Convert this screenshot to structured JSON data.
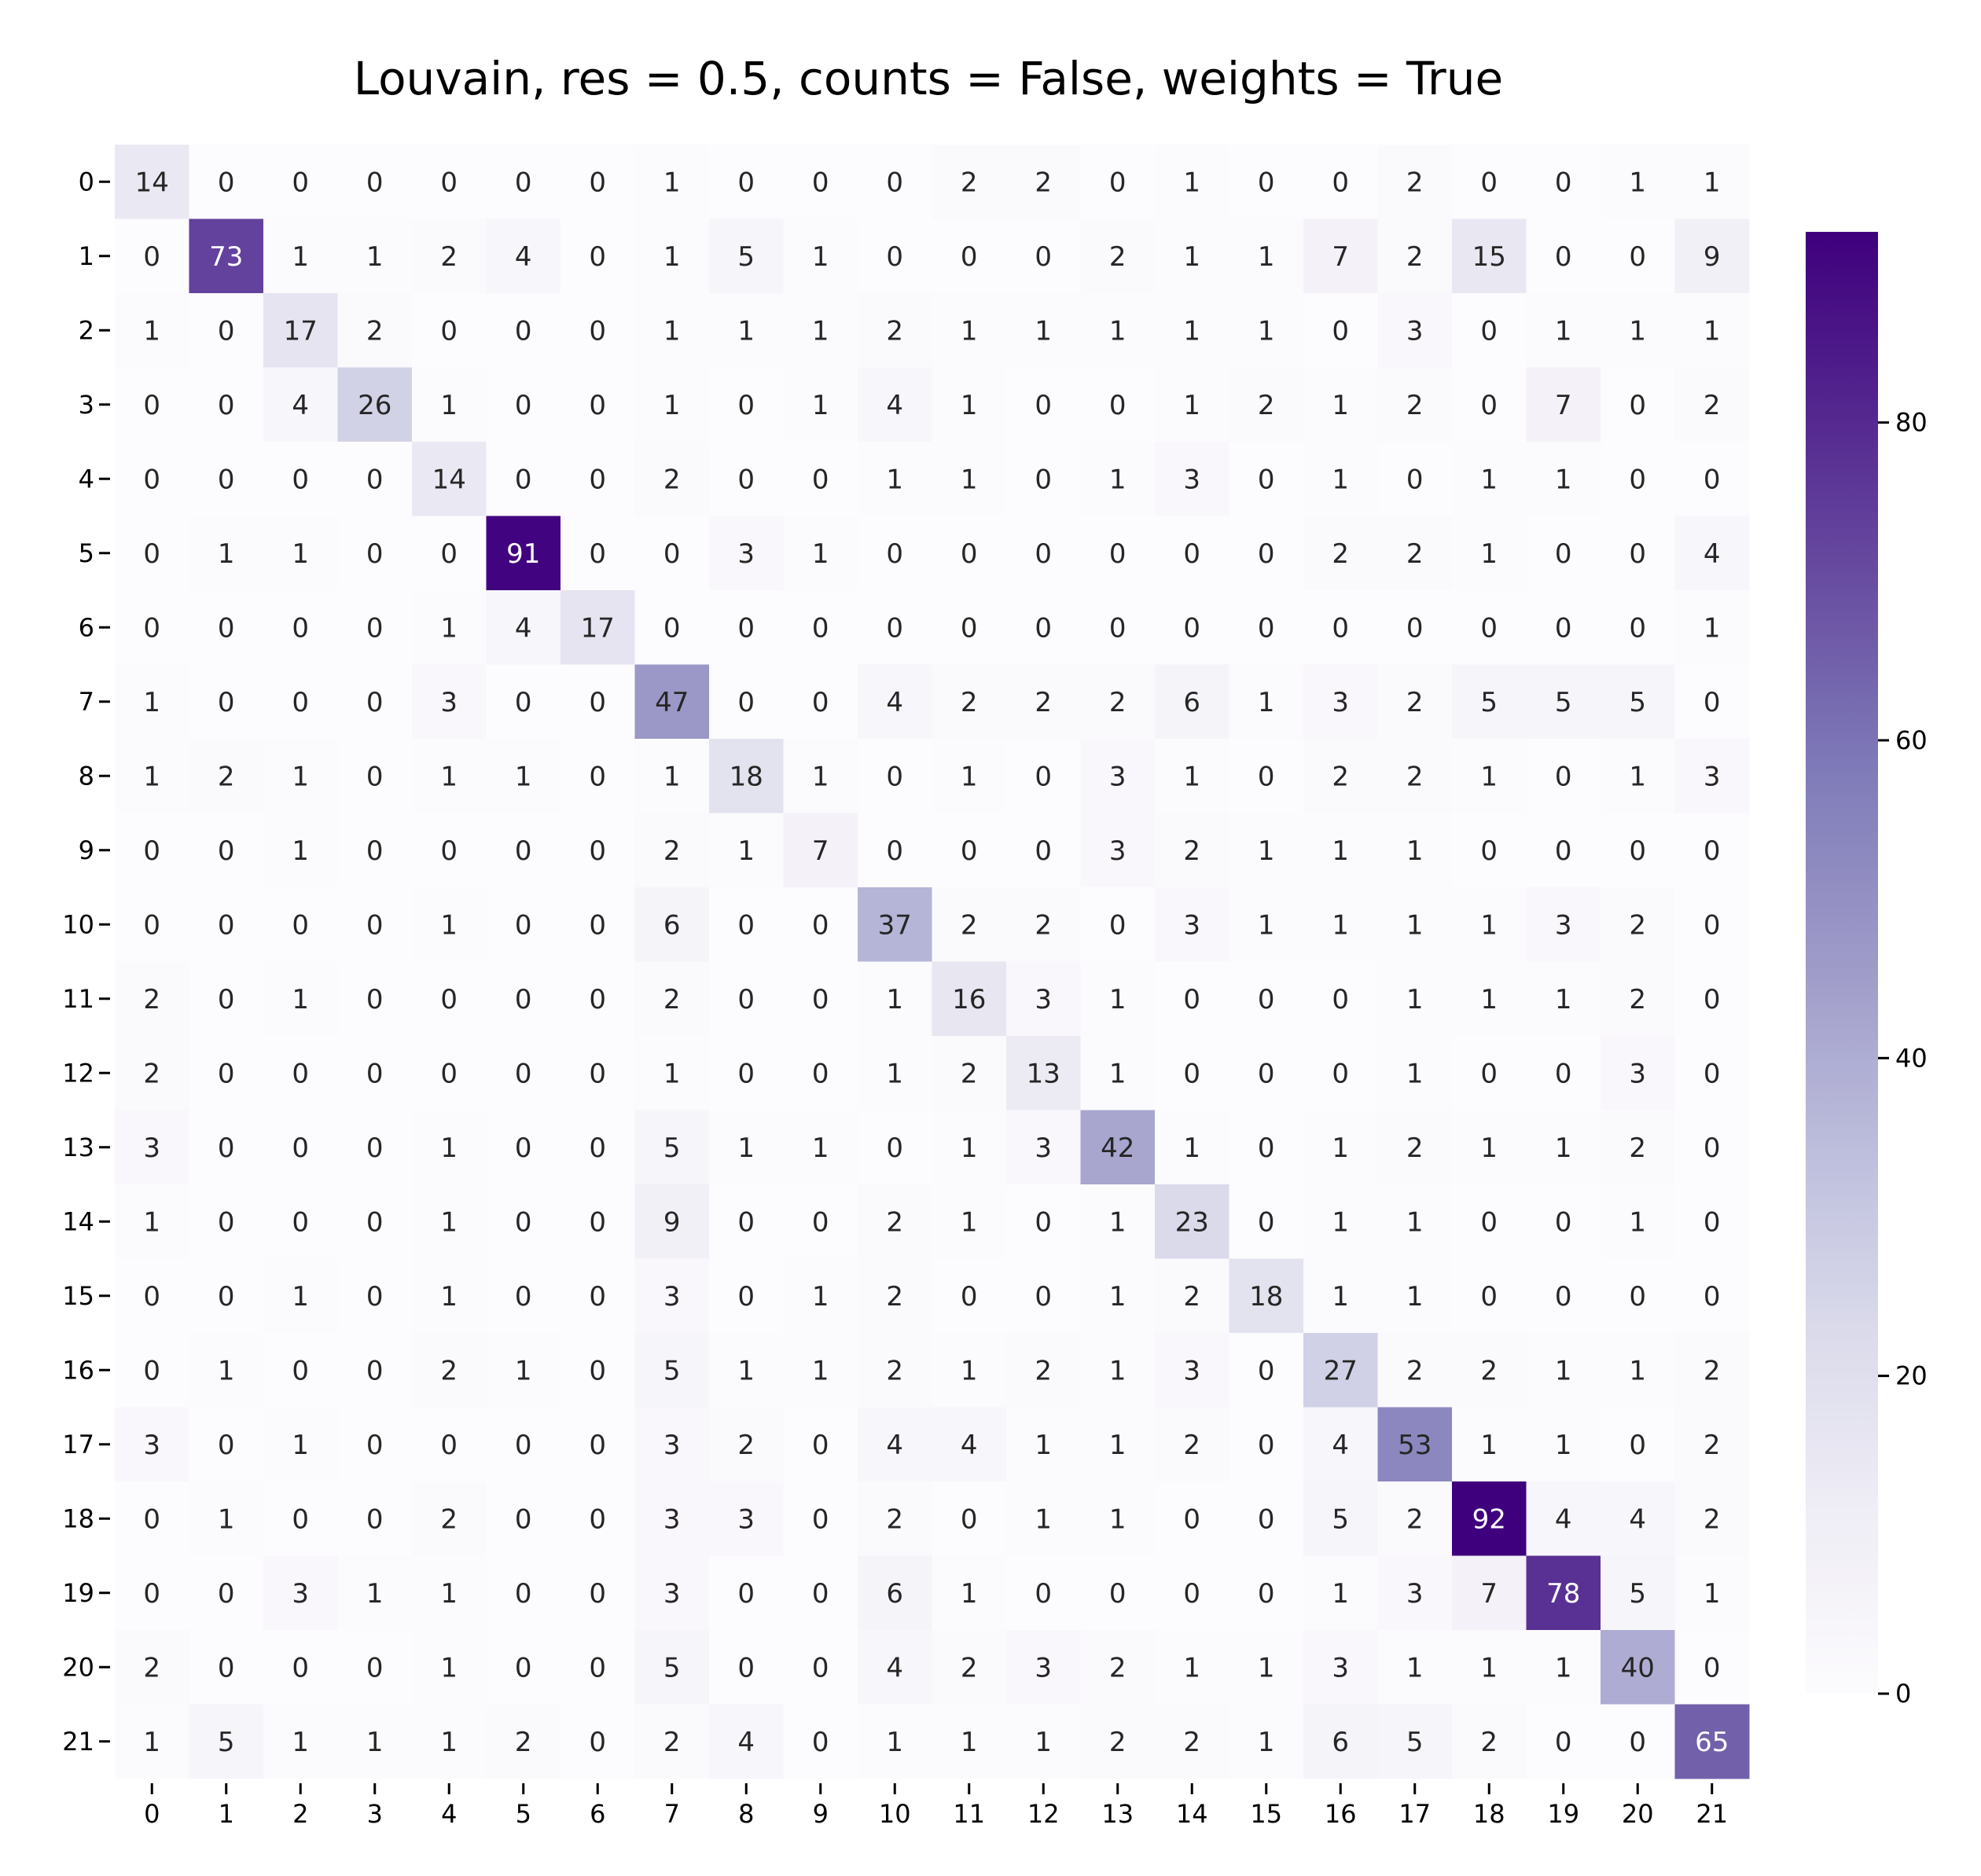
{
  "chart_data": {
    "type": "heatmap",
    "title": "Louvain, res = 0.5, counts = False, weights = True",
    "xlabel": "",
    "ylabel": "",
    "x_tick_labels": [
      "0",
      "1",
      "2",
      "3",
      "4",
      "5",
      "6",
      "7",
      "8",
      "9",
      "10",
      "11",
      "12",
      "13",
      "14",
      "15",
      "16",
      "17",
      "18",
      "19",
      "20",
      "21"
    ],
    "y_tick_labels": [
      "0",
      "1",
      "2",
      "3",
      "4",
      "5",
      "6",
      "7",
      "8",
      "9",
      "10",
      "11",
      "12",
      "13",
      "14",
      "15",
      "16",
      "17",
      "18",
      "19",
      "20",
      "21"
    ],
    "values": [
      [
        14,
        0,
        0,
        0,
        0,
        0,
        0,
        1,
        0,
        0,
        0,
        2,
        2,
        0,
        1,
        0,
        0,
        2,
        0,
        0,
        1,
        1
      ],
      [
        0,
        73,
        1,
        1,
        2,
        4,
        0,
        1,
        5,
        1,
        0,
        0,
        0,
        2,
        1,
        1,
        7,
        2,
        15,
        0,
        0,
        9
      ],
      [
        1,
        0,
        17,
        2,
        0,
        0,
        0,
        1,
        1,
        1,
        2,
        1,
        1,
        1,
        1,
        1,
        0,
        3,
        0,
        1,
        1,
        1
      ],
      [
        0,
        0,
        4,
        26,
        1,
        0,
        0,
        1,
        0,
        1,
        4,
        1,
        0,
        0,
        1,
        2,
        1,
        2,
        0,
        7,
        0,
        2
      ],
      [
        0,
        0,
        0,
        0,
        14,
        0,
        0,
        2,
        0,
        0,
        1,
        1,
        0,
        1,
        3,
        0,
        1,
        0,
        1,
        1,
        0,
        0
      ],
      [
        0,
        1,
        1,
        0,
        0,
        91,
        0,
        0,
        3,
        1,
        0,
        0,
        0,
        0,
        0,
        0,
        2,
        2,
        1,
        0,
        0,
        4
      ],
      [
        0,
        0,
        0,
        0,
        1,
        4,
        17,
        0,
        0,
        0,
        0,
        0,
        0,
        0,
        0,
        0,
        0,
        0,
        0,
        0,
        0,
        1
      ],
      [
        1,
        0,
        0,
        0,
        3,
        0,
        0,
        47,
        0,
        0,
        4,
        2,
        2,
        2,
        6,
        1,
        3,
        2,
        5,
        5,
        5,
        0
      ],
      [
        1,
        2,
        1,
        0,
        1,
        1,
        0,
        1,
        18,
        1,
        0,
        1,
        0,
        3,
        1,
        0,
        2,
        2,
        1,
        0,
        1,
        3
      ],
      [
        0,
        0,
        1,
        0,
        0,
        0,
        0,
        2,
        1,
        7,
        0,
        0,
        0,
        3,
        2,
        1,
        1,
        1,
        0,
        0,
        0,
        0
      ],
      [
        0,
        0,
        0,
        0,
        1,
        0,
        0,
        6,
        0,
        0,
        37,
        2,
        2,
        0,
        3,
        1,
        1,
        1,
        1,
        3,
        2,
        0
      ],
      [
        2,
        0,
        1,
        0,
        0,
        0,
        0,
        2,
        0,
        0,
        1,
        16,
        3,
        1,
        0,
        0,
        0,
        1,
        1,
        1,
        2,
        0
      ],
      [
        2,
        0,
        0,
        0,
        0,
        0,
        0,
        1,
        0,
        0,
        1,
        2,
        13,
        1,
        0,
        0,
        0,
        1,
        0,
        0,
        3,
        0
      ],
      [
        3,
        0,
        0,
        0,
        1,
        0,
        0,
        5,
        1,
        1,
        0,
        1,
        3,
        42,
        1,
        0,
        1,
        2,
        1,
        1,
        2,
        0
      ],
      [
        1,
        0,
        0,
        0,
        1,
        0,
        0,
        9,
        0,
        0,
        2,
        1,
        0,
        1,
        23,
        0,
        1,
        1,
        0,
        0,
        1,
        0
      ],
      [
        0,
        0,
        1,
        0,
        1,
        0,
        0,
        3,
        0,
        1,
        2,
        0,
        0,
        1,
        2,
        18,
        1,
        1,
        0,
        0,
        0,
        0
      ],
      [
        0,
        1,
        0,
        0,
        2,
        1,
        0,
        5,
        1,
        1,
        2,
        1,
        2,
        1,
        3,
        0,
        27,
        2,
        2,
        1,
        1,
        2
      ],
      [
        3,
        0,
        1,
        0,
        0,
        0,
        0,
        3,
        2,
        0,
        4,
        4,
        1,
        1,
        2,
        0,
        4,
        53,
        1,
        1,
        0,
        2
      ],
      [
        0,
        1,
        0,
        0,
        2,
        0,
        0,
        3,
        3,
        0,
        2,
        0,
        1,
        1,
        0,
        0,
        5,
        2,
        92,
        4,
        4,
        2
      ],
      [
        0,
        0,
        3,
        1,
        1,
        0,
        0,
        3,
        0,
        0,
        6,
        1,
        0,
        0,
        0,
        0,
        1,
        3,
        7,
        78,
        5,
        1
      ],
      [
        2,
        0,
        0,
        0,
        1,
        0,
        0,
        5,
        0,
        0,
        4,
        2,
        3,
        2,
        1,
        1,
        3,
        1,
        1,
        1,
        40,
        0
      ],
      [
        1,
        5,
        1,
        1,
        1,
        2,
        0,
        2,
        4,
        0,
        1,
        1,
        1,
        2,
        2,
        1,
        6,
        5,
        2,
        0,
        0,
        65
      ]
    ],
    "colorbar": {
      "colormap": "Purples",
      "vmin": 0,
      "vmax": 92,
      "ticks": [
        0,
        20,
        40,
        60,
        80
      ],
      "tick_labels": [
        "0",
        "20",
        "40",
        "60",
        "80"
      ]
    },
    "grid": false,
    "legend": "colorbar-right",
    "colors": {
      "low": "#fcfbfd",
      "high": "#3f007d",
      "text_dark": "#262626",
      "text_light": "#ffffff"
    }
  }
}
